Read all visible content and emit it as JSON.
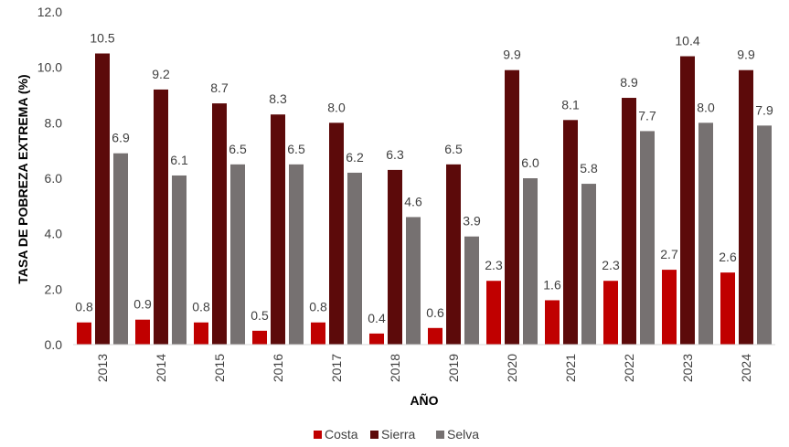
{
  "chart_data": {
    "type": "bar",
    "categories": [
      "2013",
      "2014",
      "2015",
      "2016",
      "2017",
      "2018",
      "2019",
      "2020",
      "2021",
      "2022",
      "2023",
      "2024"
    ],
    "series": [
      {
        "name": "Costa",
        "color": "#C00000",
        "values": [
          0.8,
          0.9,
          0.8,
          0.5,
          0.8,
          0.4,
          0.6,
          2.3,
          1.6,
          2.3,
          2.7,
          2.6
        ]
      },
      {
        "name": "Sierra",
        "color": "#5C0A0A",
        "values": [
          10.5,
          9.2,
          8.7,
          8.3,
          8.0,
          6.3,
          6.5,
          9.9,
          8.1,
          8.9,
          10.4,
          9.9
        ]
      },
      {
        "name": "Selva",
        "color": "#767171",
        "values": [
          6.9,
          6.1,
          6.5,
          6.5,
          6.2,
          4.6,
          3.9,
          6.0,
          5.8,
          7.7,
          8.0,
          7.9
        ]
      }
    ],
    "xlabel": "AÑO",
    "ylabel": "TASA DE POBREZA EXTREMA (%)",
    "ylim": [
      0,
      12
    ],
    "yticks": [
      "0.0",
      "2.0",
      "4.0",
      "6.0",
      "8.0",
      "10.0",
      "12.0"
    ],
    "grid": false,
    "legend": "bottom"
  }
}
